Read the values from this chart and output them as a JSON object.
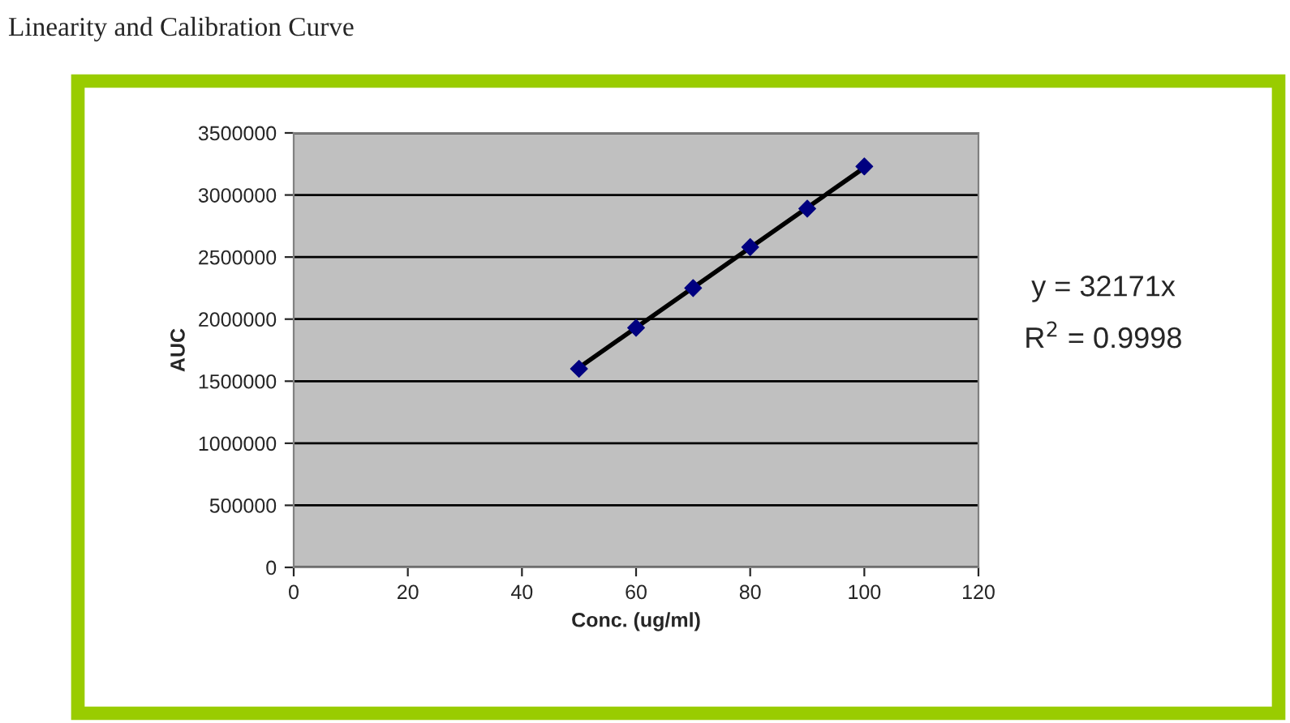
{
  "chart_data": {
    "type": "scatter",
    "title": "Linearity and Calibration Curve",
    "xlabel": "Conc. (ug/ml)",
    "ylabel": "AUC",
    "series": [
      {
        "color": "#000080",
        "x": [
          50,
          60,
          70,
          80,
          90,
          100
        ],
        "values": [
          1600000,
          1930000,
          2250000,
          2580000,
          2890000,
          3230000
        ],
        "marker": "diamond"
      },
      {
        "type": "line",
        "color": "#000000",
        "x": [
          50,
          100
        ],
        "values": [
          1610000,
          3220000
        ],
        "marker": "none",
        "line_style": "solid"
      }
    ],
    "xlim": [
      0,
      120
    ],
    "xticks": [
      0,
      20,
      40,
      60,
      80,
      100,
      120
    ],
    "ylim": [
      0,
      3500000
    ],
    "yticks": [
      0,
      500000,
      1000000,
      1500000,
      2000000,
      2500000,
      3000000,
      3500000
    ],
    "grid": "y",
    "annotations": [
      "y = 32171x",
      "R$^{2}$ = 0.9998"
    ]
  }
}
